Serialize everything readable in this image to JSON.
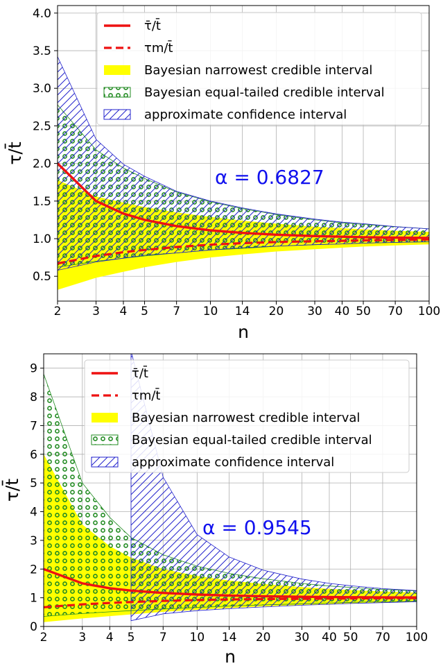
{
  "chart_data": [
    {
      "type": "area",
      "x_scale": "log",
      "xlim": [
        2,
        100
      ],
      "ylim": [
        0.17,
        4.1
      ],
      "xlabel": "n",
      "ylabel": "τ/t̄",
      "xticks": [
        "2",
        "3",
        "4",
        "5",
        "7",
        "10",
        "14",
        "20",
        "30",
        "40",
        "50",
        "70",
        "100"
      ],
      "yticks": [
        "0.5",
        "1.0",
        "1.5",
        "2.0",
        "2.5",
        "3.0",
        "3.5",
        "4.0"
      ],
      "grid": true,
      "legend_position": "top-center",
      "annotation": "α = 0.6827",
      "x": [
        2,
        3,
        4,
        5,
        7,
        10,
        14,
        20,
        30,
        40,
        50,
        70,
        100
      ],
      "series": [
        {
          "name": "τ̄/t̄",
          "kind": "line",
          "color": "#ee1111",
          "values": [
            2.0,
            1.5,
            1.333,
            1.25,
            1.167,
            1.111,
            1.077,
            1.053,
            1.034,
            1.026,
            1.02,
            1.014,
            1.01
          ]
        },
        {
          "name": "τm/t̄",
          "kind": "dashed-line",
          "color": "#ee1111",
          "values": [
            0.67,
            0.77,
            0.82,
            0.85,
            0.89,
            0.92,
            0.94,
            0.955,
            0.965,
            0.972,
            0.977,
            0.983,
            0.988
          ]
        },
        {
          "name": "Bayesian narrowest credible interval",
          "kind": "band",
          "color": "#ffff00",
          "lower": [
            0.32,
            0.48,
            0.56,
            0.62,
            0.69,
            0.75,
            0.79,
            0.83,
            0.86,
            0.88,
            0.895,
            0.91,
            0.925
          ],
          "upper": [
            1.78,
            1.56,
            1.48,
            1.42,
            1.35,
            1.29,
            1.24,
            1.2,
            1.16,
            1.14,
            1.125,
            1.105,
            1.09
          ]
        },
        {
          "name": "Bayesian equal-tailed credible interval",
          "kind": "band",
          "color": "#228b22",
          "lower": [
            0.62,
            0.7,
            0.74,
            0.77,
            0.81,
            0.85,
            0.87,
            0.9,
            0.92,
            0.93,
            0.94,
            0.95,
            0.958
          ],
          "upper": [
            2.78,
            2.18,
            1.94,
            1.8,
            1.62,
            1.49,
            1.4,
            1.32,
            1.25,
            1.21,
            1.19,
            1.16,
            1.13
          ]
        },
        {
          "name": "approximate confidence interval",
          "kind": "band",
          "color": "#2222cc",
          "lower": [
            0.58,
            0.69,
            0.74,
            0.78,
            0.81,
            0.85,
            0.88,
            0.9,
            0.92,
            0.93,
            0.94,
            0.95,
            0.96
          ],
          "upper": [
            3.42,
            2.32,
            1.99,
            1.83,
            1.63,
            1.5,
            1.41,
            1.33,
            1.26,
            1.22,
            1.2,
            1.16,
            1.13
          ]
        }
      ]
    },
    {
      "type": "area",
      "x_scale": "log",
      "xlim": [
        2,
        100
      ],
      "ylim": [
        0,
        9.5
      ],
      "xlabel": "n",
      "ylabel": "τ/t̄",
      "xticks": [
        "2",
        "3",
        "4",
        "5",
        "7",
        "10",
        "14",
        "20",
        "30",
        "40",
        "50",
        "70",
        "100"
      ],
      "yticks": [
        "0",
        "1",
        "2",
        "3",
        "4",
        "5",
        "6",
        "7",
        "8",
        "9"
      ],
      "grid": true,
      "legend_position": "top-center",
      "annotation": "α = 0.9545",
      "x": [
        2,
        3,
        4,
        5,
        7,
        10,
        14,
        20,
        30,
        40,
        50,
        70,
        100
      ],
      "series": [
        {
          "name": "τ̄/t̄",
          "kind": "line",
          "color": "#ee1111",
          "values": [
            2.0,
            1.5,
            1.333,
            1.25,
            1.167,
            1.111,
            1.077,
            1.053,
            1.034,
            1.026,
            1.02,
            1.014,
            1.01
          ]
        },
        {
          "name": "τm/t̄",
          "kind": "dashed-line",
          "color": "#ee1111",
          "values": [
            0.67,
            0.77,
            0.82,
            0.85,
            0.89,
            0.92,
            0.94,
            0.955,
            0.965,
            0.972,
            0.977,
            0.983,
            0.988
          ]
        },
        {
          "name": "Bayesian narrowest credible interval",
          "kind": "band",
          "color": "#ffff00",
          "lower": [
            0.15,
            0.28,
            0.36,
            0.42,
            0.51,
            0.58,
            0.64,
            0.7,
            0.75,
            0.78,
            0.8,
            0.83,
            0.86
          ],
          "upper": [
            6.0,
            3.55,
            2.8,
            2.4,
            2.0,
            1.76,
            1.6,
            1.48,
            1.37,
            1.31,
            1.27,
            1.22,
            1.18
          ]
        },
        {
          "name": "Bayesian equal-tailed credible interval",
          "kind": "band",
          "color": "#228b22",
          "lower": [
            0.35,
            0.45,
            0.51,
            0.55,
            0.61,
            0.66,
            0.71,
            0.75,
            0.79,
            0.82,
            0.84,
            0.86,
            0.88
          ],
          "upper": [
            8.8,
            5.0,
            3.8,
            3.1,
            2.5,
            2.1,
            1.85,
            1.66,
            1.5,
            1.41,
            1.36,
            1.29,
            1.24
          ]
        },
        {
          "name": "approximate confidence interval",
          "kind": "band",
          "color": "#2222cc",
          "lower": [
            null,
            null,
            null,
            0.2,
            0.44,
            0.55,
            0.62,
            0.68,
            0.74,
            0.77,
            0.8,
            0.83,
            0.86
          ],
          "upper": [
            null,
            null,
            null,
            9.6,
            5.2,
            3.2,
            2.42,
            1.96,
            1.65,
            1.5,
            1.42,
            1.32,
            1.25
          ]
        }
      ]
    }
  ]
}
